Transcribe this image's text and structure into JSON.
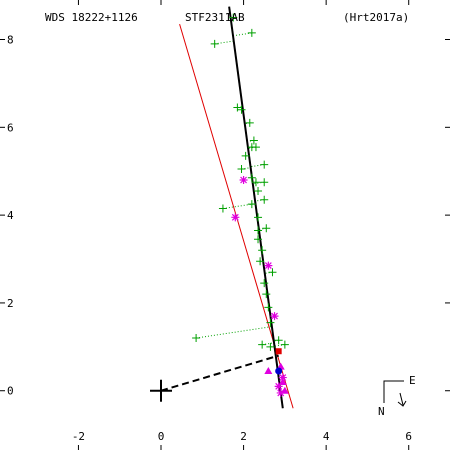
{
  "header": {
    "left": "WDS 18222+1126",
    "center": "STF2311AB",
    "right": "(Hrt2017a)"
  },
  "compass": {
    "east": "E",
    "north": "N"
  },
  "chart_data": {
    "type": "scatter",
    "title": "STF2311AB",
    "xlim": [
      -3.9,
      7.0
    ],
    "ylim": [
      -1.35,
      8.9
    ],
    "x_ticks": [
      -2,
      0,
      2,
      4,
      6
    ],
    "y_ticks": [
      0,
      2,
      4,
      6,
      8
    ],
    "x_tick_labels": [
      "-2",
      "0",
      "2",
      "4",
      "6"
    ],
    "y_tick_labels": [
      "0",
      "2",
      "4",
      "6",
      "8"
    ],
    "grid": false,
    "primary_star": [
      0,
      0
    ],
    "orbit_line": [
      [
        1.65,
        8.75
      ],
      [
        2.95,
        -0.4
      ]
    ],
    "red_line": [
      [
        0.45,
        8.35
      ],
      [
        3.2,
        -0.4
      ]
    ],
    "dashed_line": [
      [
        0,
        0
      ],
      [
        2.85,
        0.8
      ]
    ],
    "series": [
      {
        "marker": "plus",
        "color": "#00a000",
        "points": [
          [
            1.75,
            8.5
          ],
          [
            2.2,
            8.15
          ],
          [
            1.3,
            7.9
          ],
          [
            1.85,
            6.45
          ],
          [
            1.95,
            6.4
          ],
          [
            2.15,
            6.1
          ],
          [
            2.25,
            5.7
          ],
          [
            2.2,
            5.55
          ],
          [
            2.3,
            5.55
          ],
          [
            2.05,
            5.35
          ],
          [
            2.5,
            5.15
          ],
          [
            1.95,
            5.05
          ],
          [
            2.2,
            4.85
          ],
          [
            2.3,
            4.75
          ],
          [
            2.5,
            4.75
          ],
          [
            2.35,
            4.55
          ],
          [
            2.5,
            4.35
          ],
          [
            2.2,
            4.25
          ],
          [
            1.5,
            4.15
          ],
          [
            2.35,
            3.95
          ],
          [
            2.55,
            3.7
          ],
          [
            2.35,
            3.65
          ],
          [
            2.35,
            3.45
          ],
          [
            2.45,
            3.2
          ],
          [
            2.4,
            2.95
          ],
          [
            2.7,
            2.7
          ],
          [
            2.5,
            2.45
          ],
          [
            2.55,
            2.2
          ],
          [
            2.6,
            1.9
          ],
          [
            2.65,
            1.55
          ],
          [
            2.85,
            1.15
          ],
          [
            2.45,
            1.05
          ],
          [
            2.65,
            1.0
          ],
          [
            3.0,
            1.05
          ],
          [
            0.85,
            1.2
          ]
        ]
      },
      {
        "marker": "asterisk",
        "color": "#e000e0",
        "points": [
          [
            2.0,
            4.8
          ],
          [
            1.8,
            3.95
          ],
          [
            2.6,
            2.85
          ],
          [
            2.75,
            1.7
          ],
          [
            2.85,
            0.1
          ],
          [
            2.9,
            -0.05
          ],
          [
            2.95,
            0.3
          ]
        ]
      },
      {
        "marker": "triangle",
        "color": "#e000e0",
        "points": [
          [
            2.6,
            0.45
          ],
          [
            2.9,
            0.55
          ],
          [
            2.95,
            0.2
          ],
          [
            3.0,
            0.0
          ]
        ]
      },
      {
        "marker": "square",
        "color": "#e00000",
        "points": [
          [
            2.85,
            0.9
          ]
        ]
      },
      {
        "marker": "dot",
        "color": "#0000d0",
        "points": [
          [
            2.85,
            0.45
          ]
        ]
      }
    ]
  }
}
